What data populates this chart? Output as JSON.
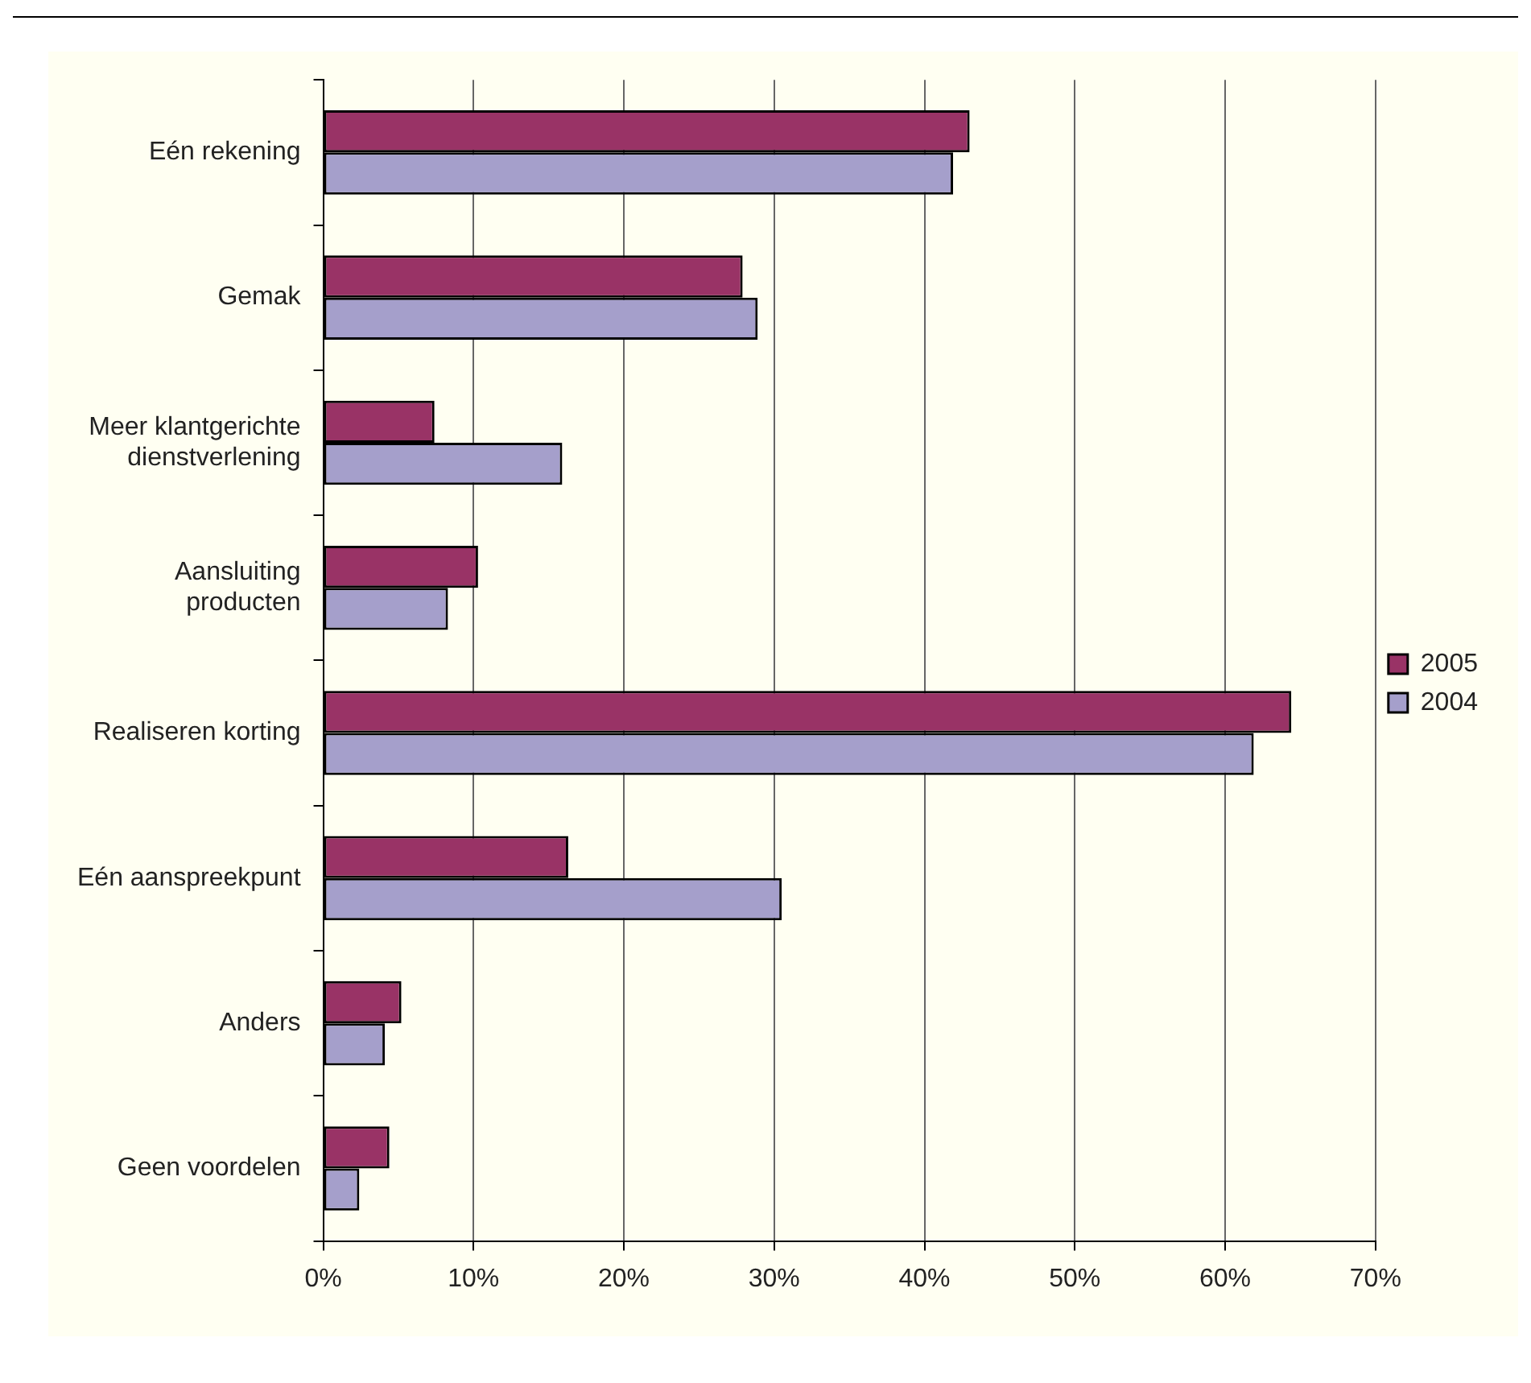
{
  "chart_data": {
    "type": "bar",
    "orientation": "horizontal",
    "categories": [
      "Eén rekening",
      "Gemak",
      "Meer klantgerichte dienstverlening",
      "Aansluiting producten",
      "Realiseren korting",
      "Eén aanspreekpunt",
      "Anders",
      "Geen voordelen"
    ],
    "series": [
      {
        "name": "2005",
        "color": "#993366",
        "values": [
          43.0,
          27.9,
          7.4,
          10.3,
          64.4,
          16.3,
          5.2,
          4.4
        ]
      },
      {
        "name": "2004",
        "color": "#a59fcb",
        "values": [
          41.9,
          28.9,
          15.9,
          8.3,
          61.9,
          30.5,
          4.1,
          2.4
        ]
      }
    ],
    "xlim": [
      0,
      70
    ],
    "xticks": [
      {
        "value": 0,
        "label": "0%"
      },
      {
        "value": 10,
        "label": "10%"
      },
      {
        "value": 20,
        "label": "20%"
      },
      {
        "value": 30,
        "label": "30%"
      },
      {
        "value": 40,
        "label": "40%"
      },
      {
        "value": 50,
        "label": "50%"
      },
      {
        "value": 60,
        "label": "60%"
      },
      {
        "value": 70,
        "label": "70%"
      }
    ],
    "grid": "x",
    "legend": "right"
  }
}
